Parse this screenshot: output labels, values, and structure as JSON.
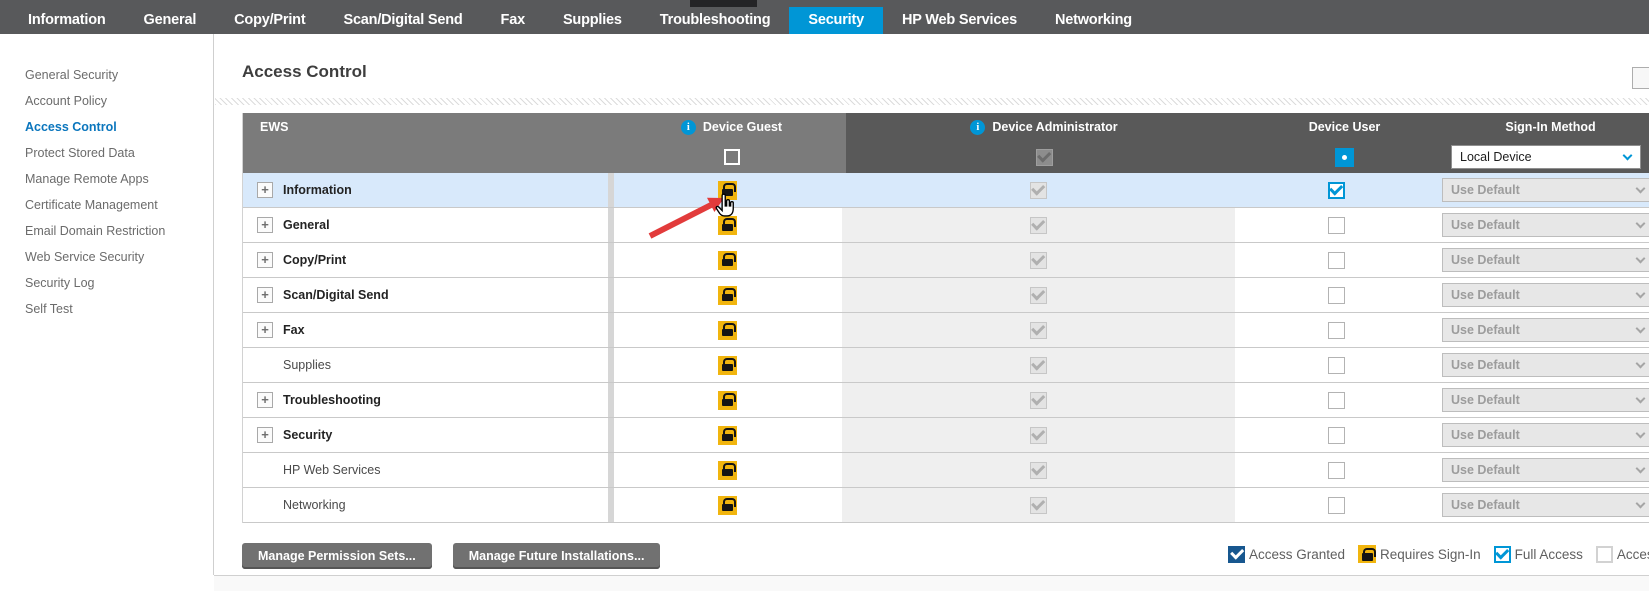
{
  "nav": {
    "tabs": [
      {
        "label": "Information",
        "active": false
      },
      {
        "label": "General",
        "active": false
      },
      {
        "label": "Copy/Print",
        "active": false
      },
      {
        "label": "Scan/Digital Send",
        "active": false
      },
      {
        "label": "Fax",
        "active": false
      },
      {
        "label": "Supplies",
        "active": false
      },
      {
        "label": "Troubleshooting",
        "active": false
      },
      {
        "label": "Security",
        "active": true
      },
      {
        "label": "HP Web Services",
        "active": false
      },
      {
        "label": "Networking",
        "active": false
      }
    ]
  },
  "sidebar": {
    "items": [
      {
        "label": "General Security",
        "active": false
      },
      {
        "label": "Account Policy",
        "active": false
      },
      {
        "label": "Access Control",
        "active": true
      },
      {
        "label": "Protect Stored Data",
        "active": false
      },
      {
        "label": "Manage Remote Apps",
        "active": false
      },
      {
        "label": "Certificate Management",
        "active": false
      },
      {
        "label": "Email Domain Restriction",
        "active": false
      },
      {
        "label": "Web Service Security",
        "active": false
      },
      {
        "label": "Security Log",
        "active": false
      },
      {
        "label": "Self Test",
        "active": false
      }
    ]
  },
  "page": {
    "title": "Access Control"
  },
  "table": {
    "columns": {
      "ews": "EWS",
      "guest": "Device Guest",
      "admin": "Device Administrator",
      "user": "Device User",
      "signin": "Sign-In Method"
    },
    "header_controls": {
      "guest_checked": false,
      "admin_checked": true,
      "user_selected": true,
      "signin_value": "Local Device"
    },
    "rows": [
      {
        "label": "Information",
        "expandable": true,
        "guest": "lock",
        "admin_checked": true,
        "user_checked": true,
        "signin": "Use Default",
        "highlighted": true
      },
      {
        "label": "General",
        "expandable": true,
        "guest": "lock",
        "admin_checked": true,
        "user_checked": false,
        "signin": "Use Default",
        "highlighted": false
      },
      {
        "label": "Copy/Print",
        "expandable": true,
        "guest": "lock",
        "admin_checked": true,
        "user_checked": false,
        "signin": "Use Default",
        "highlighted": false
      },
      {
        "label": "Scan/Digital Send",
        "expandable": true,
        "guest": "lock",
        "admin_checked": true,
        "user_checked": false,
        "signin": "Use Default",
        "highlighted": false
      },
      {
        "label": "Fax",
        "expandable": true,
        "guest": "lock",
        "admin_checked": true,
        "user_checked": false,
        "signin": "Use Default",
        "highlighted": false
      },
      {
        "label": "Supplies",
        "expandable": false,
        "guest": "lock",
        "admin_checked": true,
        "user_checked": false,
        "signin": "Use Default",
        "highlighted": false
      },
      {
        "label": "Troubleshooting",
        "expandable": true,
        "guest": "lock",
        "admin_checked": true,
        "user_checked": false,
        "signin": "Use Default",
        "highlighted": false
      },
      {
        "label": "Security",
        "expandable": true,
        "guest": "lock",
        "admin_checked": true,
        "user_checked": false,
        "signin": "Use Default",
        "highlighted": false
      },
      {
        "label": "HP Web Services",
        "expandable": false,
        "guest": "lock",
        "admin_checked": true,
        "user_checked": false,
        "signin": "Use Default",
        "highlighted": false
      },
      {
        "label": "Networking",
        "expandable": false,
        "guest": "lock",
        "admin_checked": true,
        "user_checked": false,
        "signin": "Use Default",
        "highlighted": false
      }
    ],
    "expander_glyph": "+",
    "info_icon_glyph": "i"
  },
  "actions": {
    "buttons": [
      {
        "label": "Manage Permission Sets..."
      },
      {
        "label": "Manage Future Installations..."
      }
    ]
  },
  "legend": {
    "items": [
      {
        "label": "Access Granted",
        "icon": "checkbox-solid-checked"
      },
      {
        "label": "Requires Sign-In",
        "icon": "lock"
      },
      {
        "label": "Full Access",
        "icon": "checkbox-blue-checked"
      },
      {
        "label": "Access Denied",
        "icon": "checkbox-empty"
      }
    ]
  },
  "colors": {
    "hp_blue": "#0096d6",
    "nav_bg": "#58595b",
    "header_light_gray": "#7b7b7b",
    "header_dark_gray": "#595959",
    "highlight_row": "#d8e9fb",
    "lock_yellow": "#f1b50e",
    "legend_dark_blue": "#17578f",
    "arrow_red": "#e23b3b",
    "sidebar_active_blue": "#0b76bd"
  }
}
